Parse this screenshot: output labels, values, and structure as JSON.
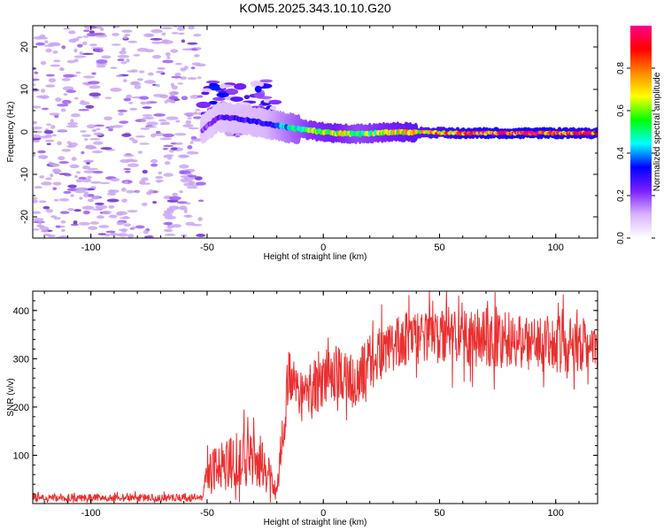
{
  "title": "KOM5.2025.343.10.10.G20",
  "colors": {
    "snr_line": "#e8302f",
    "spectrogram_strong": "#6a2bd0",
    "spectrogram_weak": "#c9a6f2",
    "spectrogram_mid": "#9b5cf0"
  },
  "colorbar": {
    "label": "Normalized spectral amplitude",
    "ticks": [
      "0.0",
      "0.2",
      "0.4",
      "0.6",
      "0.8"
    ],
    "tick_values": [
      0.0,
      0.2,
      0.4,
      0.6,
      0.8
    ],
    "range": [
      0,
      1
    ],
    "stops": [
      "#ffffff",
      "#d9b3ff",
      "#7a1fff",
      "#0000ff",
      "#00ffff",
      "#00ff00",
      "#ffff00",
      "#ff8800",
      "#ff0000",
      "#ff0088"
    ]
  },
  "chart_data": [
    {
      "type": "heatmap",
      "title": "KOM5.2025.343.10.10.G20",
      "xlabel": "Height of straight line (km)",
      "ylabel": "Frequency (Hz)",
      "xlim": [
        -125,
        118
      ],
      "ylim": [
        -25,
        25
      ],
      "xticks": [
        -100,
        -50,
        0,
        50,
        100
      ],
      "xtick_labels": [
        "-100",
        "-50",
        "0",
        "50",
        "100"
      ],
      "yticks": [
        -20,
        -10,
        0,
        10,
        20
      ],
      "ytick_labels": [
        "-20",
        "-10",
        "0",
        "10",
        "20"
      ],
      "noise_region_x": [
        -125,
        -52
      ],
      "ridge": [
        {
          "x": -52,
          "y": 0.5,
          "amp": 0.18
        },
        {
          "x": -45,
          "y": 3.5,
          "amp": 0.25
        },
        {
          "x": -35,
          "y": 3.0,
          "amp": 0.28
        },
        {
          "x": -25,
          "y": 2.0,
          "amp": 0.3
        },
        {
          "x": -15,
          "y": 1.0,
          "amp": 0.45
        },
        {
          "x": -5,
          "y": 0.3,
          "amp": 0.6
        },
        {
          "x": 5,
          "y": -0.3,
          "amp": 0.65
        },
        {
          "x": 15,
          "y": -0.5,
          "amp": 0.55
        },
        {
          "x": 30,
          "y": 0.0,
          "amp": 0.65
        },
        {
          "x": 60,
          "y": -0.3,
          "amp": 0.85
        },
        {
          "x": 90,
          "y": -0.3,
          "amp": 0.9
        },
        {
          "x": 118,
          "y": -0.3,
          "amp": 0.85
        }
      ]
    },
    {
      "type": "line",
      "xlabel": "Height of straight line (km)",
      "ylabel": "SNR (v/v)",
      "xlim": [
        -125,
        118
      ],
      "ylim": [
        0,
        440
      ],
      "xticks": [
        -100,
        -50,
        0,
        50,
        100
      ],
      "xtick_labels": [
        "-100",
        "-50",
        "0",
        "50",
        "100"
      ],
      "yticks": [
        100,
        200,
        300,
        400
      ],
      "ytick_labels": [
        "100",
        "200",
        "300",
        "400"
      ],
      "series": [
        {
          "name": "SNR",
          "envelope_x": [
            -125,
            -52,
            -50,
            -40,
            -30,
            -25,
            -20,
            -18,
            -15,
            -10,
            -5,
            0,
            5,
            10,
            15,
            20,
            30,
            40,
            50,
            60,
            80,
            100,
            118
          ],
          "envelope_mean": [
            12,
            12,
            60,
            85,
            95,
            75,
            20,
            120,
            270,
            215,
            240,
            260,
            270,
            255,
            260,
            290,
            330,
            350,
            350,
            345,
            340,
            330,
            330
          ],
          "envelope_spread": [
            8,
            8,
            45,
            55,
            60,
            55,
            10,
            60,
            55,
            50,
            55,
            70,
            60,
            60,
            60,
            60,
            55,
            55,
            60,
            60,
            60,
            60,
            55
          ]
        }
      ]
    }
  ]
}
